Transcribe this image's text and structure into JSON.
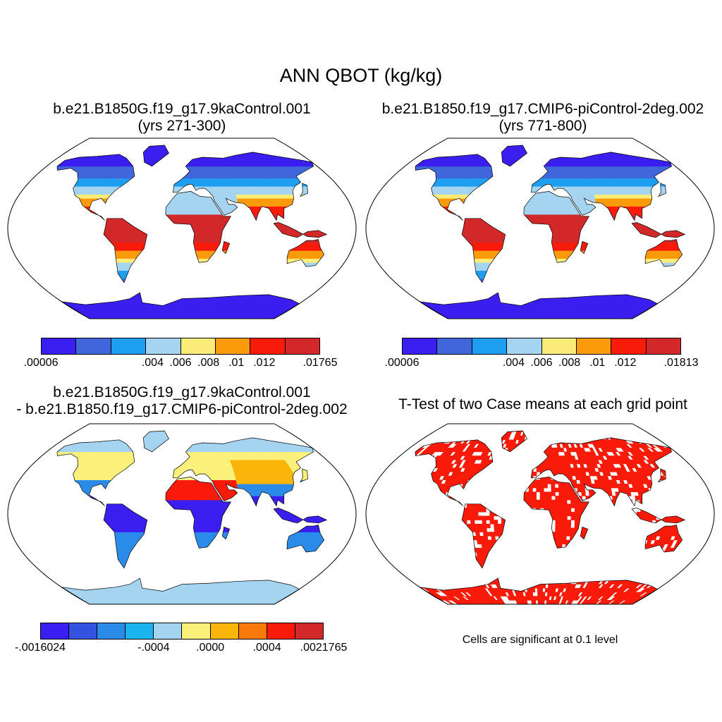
{
  "title": "ANN QBOT (kg/kg)",
  "panels": [
    {
      "title_line1": "b.e21.B1850G.f19_g17.9kaControl.001",
      "title_line2": "(yrs 271-300)",
      "palette": [
        "#3a1ff0",
        "#4166dc",
        "#1e9ef0",
        "#a4d4f0",
        "#fbeb78",
        "#fb9a0a",
        "#f91b0a",
        "#d2282a"
      ],
      "ticks": [
        ".00006",
        ".004",
        ".006",
        ".008",
        ".01",
        ".012",
        ".01765"
      ],
      "tick_positions": [
        0.0,
        0.4,
        0.5,
        0.6,
        0.7,
        0.8,
        1.0
      ]
    },
    {
      "title_line1": "b.e21.B1850.f19_g17.CMIP6-piControl-2deg.002",
      "title_line2": "(yrs 771-800)",
      "palette": [
        "#3a1ff0",
        "#4166dc",
        "#1e9ef0",
        "#a4d4f0",
        "#fbeb78",
        "#fb9a0a",
        "#f91b0a",
        "#d2282a"
      ],
      "ticks": [
        ".00006",
        ".004",
        ".006",
        ".008",
        ".01",
        ".012",
        ".01813"
      ],
      "tick_positions": [
        0.0,
        0.4,
        0.5,
        0.6,
        0.7,
        0.8,
        1.0
      ]
    },
    {
      "title_line1": "b.e21.B1850G.f19_g17.9kaControl.001",
      "title_line2": "- b.e21.B1850.f19_g17.CMIP6-piControl-2deg.002",
      "palette": [
        "#3a1ff0",
        "#3452e0",
        "#2a8ce8",
        "#1ab4f0",
        "#a4d4f0",
        "#fbf07a",
        "#fbb50a",
        "#f97a0a",
        "#f91b0a",
        "#d2282a"
      ],
      "ticks": [
        "-.0016024",
        "-.0004",
        ".0000",
        ".0004",
        ".0021765"
      ],
      "tick_positions": [
        0.0,
        0.4,
        0.6,
        0.8,
        1.0
      ]
    },
    {
      "title_line1": "T-Test of two Case means at each grid point",
      "note": "Cells are significant at 0.1 level",
      "fill": "#f91b0a"
    }
  ]
}
